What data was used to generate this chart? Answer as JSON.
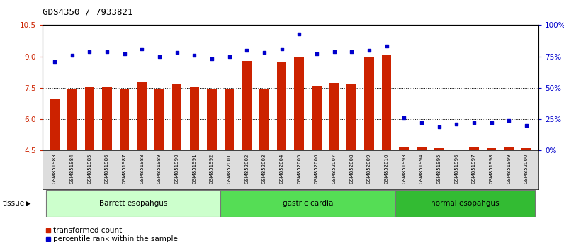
{
  "title": "GDS4350 / 7933821",
  "samples": [
    "GSM851983",
    "GSM851984",
    "GSM851985",
    "GSM851986",
    "GSM851987",
    "GSM851988",
    "GSM851989",
    "GSM851990",
    "GSM851991",
    "GSM851992",
    "GSM852001",
    "GSM852002",
    "GSM852003",
    "GSM852004",
    "GSM852005",
    "GSM852006",
    "GSM852007",
    "GSM852008",
    "GSM852009",
    "GSM852010",
    "GSM851993",
    "GSM851994",
    "GSM851995",
    "GSM851996",
    "GSM851997",
    "GSM851998",
    "GSM851999",
    "GSM852000"
  ],
  "bar_values": [
    7.0,
    7.45,
    7.55,
    7.55,
    7.45,
    7.78,
    7.45,
    7.65,
    7.55,
    7.45,
    7.45,
    8.8,
    7.45,
    8.75,
    8.95,
    7.6,
    7.75,
    7.65,
    8.95,
    9.1,
    4.7,
    4.65,
    4.6,
    4.55,
    4.65,
    4.6,
    4.7,
    4.6
  ],
  "scatter_values": [
    71,
    76,
    79,
    79,
    77,
    81,
    75,
    78,
    76,
    73,
    75,
    80,
    78,
    81,
    93,
    77,
    79,
    79,
    80,
    83,
    26,
    22,
    19,
    21,
    22,
    22,
    24,
    20
  ],
  "bar_color": "#cc2200",
  "scatter_color": "#0000cc",
  "ylim_left": [
    4.5,
    10.5
  ],
  "ylim_right": [
    0,
    100
  ],
  "yticks_left": [
    4.5,
    6.0,
    7.5,
    9.0,
    10.5
  ],
  "yticks_right": [
    0,
    25,
    50,
    75,
    100
  ],
  "ytick_labels_right": [
    "0%",
    "25%",
    "50%",
    "75%",
    "100%"
  ],
  "hlines": [
    6.0,
    7.5,
    9.0
  ],
  "groups": [
    {
      "label": "Barrett esopahgus",
      "start": 0,
      "end": 10,
      "color": "#ccffcc"
    },
    {
      "label": "gastric cardia",
      "start": 10,
      "end": 20,
      "color": "#55dd55"
    },
    {
      "label": "normal esopahgus",
      "start": 20,
      "end": 28,
      "color": "#33bb33"
    }
  ],
  "tissue_label": "tissue",
  "legend_items": [
    {
      "label": "transformed count",
      "color": "#cc2200",
      "marker": "s"
    },
    {
      "label": "percentile rank within the sample",
      "color": "#0000cc",
      "marker": "s"
    }
  ],
  "xtick_bg": "#dddddd"
}
